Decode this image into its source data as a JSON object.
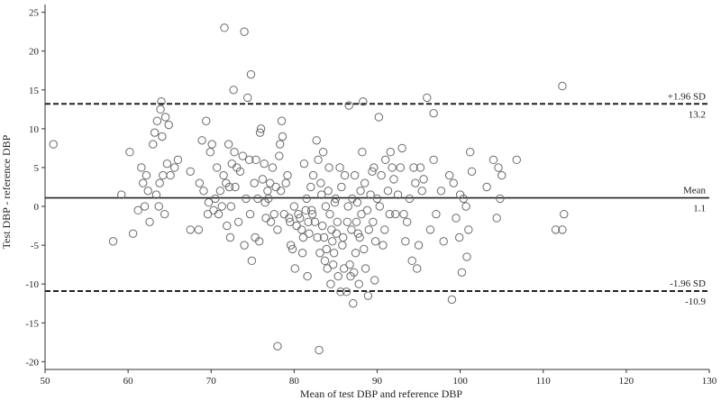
{
  "chart_data": {
    "type": "scatter",
    "title": "",
    "xlabel": "Mean of test DBP and reference DBP",
    "ylabel": "Test DBP - reference DBP",
    "xlim": [
      50,
      130
    ],
    "ylim": [
      -21,
      26
    ],
    "xticks": [
      50,
      60,
      70,
      80,
      90,
      100,
      110,
      120,
      130
    ],
    "yticks": [
      -20,
      -15,
      -10,
      -5,
      0,
      5,
      10,
      15,
      20,
      25
    ],
    "grid": false,
    "reference_lines": [
      {
        "name": "upper-loa",
        "value": 13.2,
        "style": "dashed",
        "label_top": "+1.96 SD",
        "label_bottom": "13.2"
      },
      {
        "name": "mean",
        "value": 1.1,
        "style": "solid",
        "label_top": "Mean",
        "label_bottom": "1.1"
      },
      {
        "name": "lower-loa",
        "value": -10.9,
        "style": "dashed",
        "label_top": "-1.96 SD",
        "label_bottom": "-10.9"
      }
    ],
    "points": [
      [
        51,
        8
      ],
      [
        58.2,
        -4.5
      ],
      [
        59.2,
        1.5
      ],
      [
        60.2,
        7
      ],
      [
        60.6,
        -3.5
      ],
      [
        61.2,
        -0.5
      ],
      [
        61.6,
        5
      ],
      [
        61.8,
        3
      ],
      [
        62,
        0
      ],
      [
        62.2,
        4
      ],
      [
        62.4,
        2
      ],
      [
        62.6,
        -2
      ],
      [
        63,
        8
      ],
      [
        63.2,
        9.5
      ],
      [
        63.4,
        1.5
      ],
      [
        63.5,
        11
      ],
      [
        63.7,
        0
      ],
      [
        63.8,
        3
      ],
      [
        63.9,
        12.5
      ],
      [
        64,
        13.5
      ],
      [
        64.1,
        9
      ],
      [
        64.2,
        4
      ],
      [
        64.4,
        -1
      ],
      [
        64.5,
        11.5
      ],
      [
        64.7,
        5.5
      ],
      [
        64.9,
        10.5
      ],
      [
        65.1,
        4
      ],
      [
        65.6,
        5
      ],
      [
        66,
        6
      ],
      [
        67.5,
        4.5
      ],
      [
        67.5,
        -3
      ],
      [
        68.5,
        -3
      ],
      [
        68.6,
        3
      ],
      [
        68.9,
        8.5
      ],
      [
        69.1,
        2
      ],
      [
        69.4,
        11
      ],
      [
        69.6,
        -1
      ],
      [
        69.7,
        0.5
      ],
      [
        69.9,
        7
      ],
      [
        70.1,
        8
      ],
      [
        70.3,
        -0.5
      ],
      [
        70.5,
        1
      ],
      [
        70.7,
        5
      ],
      [
        70.9,
        -1
      ],
      [
        71.1,
        2
      ],
      [
        71.3,
        0
      ],
      [
        71.5,
        4
      ],
      [
        71.6,
        23
      ],
      [
        71.8,
        3
      ],
      [
        71.9,
        -2.5
      ],
      [
        72.1,
        8
      ],
      [
        72.2,
        2.5
      ],
      [
        72.3,
        -4
      ],
      [
        72.4,
        0
      ],
      [
        72.5,
        5.5
      ],
      [
        72.7,
        15
      ],
      [
        72.8,
        7
      ],
      [
        72.9,
        2.5
      ],
      [
        73.1,
        5
      ],
      [
        73.3,
        -2
      ],
      [
        73.5,
        4.5
      ],
      [
        73.8,
        6.5
      ],
      [
        74,
        22.5
      ],
      [
        74,
        -5
      ],
      [
        74.2,
        1
      ],
      [
        74.4,
        14
      ],
      [
        74.6,
        6
      ],
      [
        74.7,
        -1
      ],
      [
        74.8,
        17
      ],
      [
        74.9,
        -7
      ],
      [
        75.2,
        3
      ],
      [
        75.3,
        -4
      ],
      [
        75.4,
        6
      ],
      [
        75.6,
        1
      ],
      [
        75.8,
        -4.5
      ],
      [
        75.9,
        9.5
      ],
      [
        76,
        10
      ],
      [
        76.2,
        3.5
      ],
      [
        76.4,
        5.5
      ],
      [
        76.5,
        0.5
      ],
      [
        76.6,
        -1.5
      ],
      [
        76.8,
        2
      ],
      [
        76.9,
        1
      ],
      [
        77.1,
        3
      ],
      [
        77.2,
        -2
      ],
      [
        77.4,
        5
      ],
      [
        77.6,
        -1
      ],
      [
        77.8,
        2.5
      ],
      [
        78,
        -3
      ],
      [
        78,
        -18
      ],
      [
        78.2,
        6.5
      ],
      [
        78.3,
        8
      ],
      [
        78.4,
        2
      ],
      [
        78.5,
        11
      ],
      [
        78.6,
        9
      ],
      [
        78.8,
        -1
      ],
      [
        79,
        3
      ],
      [
        79.2,
        4
      ],
      [
        79.4,
        -1.5
      ],
      [
        79.5,
        -2
      ],
      [
        79.6,
        -5
      ],
      [
        79.8,
        -5.5
      ],
      [
        80,
        0
      ],
      [
        80.1,
        -8
      ],
      [
        80.3,
        -2.5
      ],
      [
        80.5,
        -1
      ],
      [
        80.7,
        -1.5
      ],
      [
        80.9,
        -3
      ],
      [
        81,
        -6
      ],
      [
        81.1,
        -4
      ],
      [
        81.2,
        5.5
      ],
      [
        81.4,
        -0.5
      ],
      [
        81.5,
        1
      ],
      [
        81.6,
        -9
      ],
      [
        81.7,
        -2
      ],
      [
        81.8,
        -3.5
      ],
      [
        82,
        2.5
      ],
      [
        82.1,
        -0.5
      ],
      [
        82.2,
        -1
      ],
      [
        82.3,
        4
      ],
      [
        82.5,
        -2
      ],
      [
        82.7,
        8.5
      ],
      [
        82.8,
        -4
      ],
      [
        82.9,
        6
      ],
      [
        83,
        -18.5
      ],
      [
        83.1,
        -6
      ],
      [
        83.2,
        3
      ],
      [
        83.3,
        1.5
      ],
      [
        83.4,
        -2.5
      ],
      [
        83.5,
        7
      ],
      [
        83.6,
        -4
      ],
      [
        83.7,
        -7
      ],
      [
        83.8,
        0
      ],
      [
        83.9,
        -5.5
      ],
      [
        84,
        -8
      ],
      [
        84.1,
        2
      ],
      [
        84.2,
        5
      ],
      [
        84.3,
        -1
      ],
      [
        84.4,
        -10
      ],
      [
        84.5,
        -3
      ],
      [
        84.6,
        -4.5
      ],
      [
        84.7,
        -7.5
      ],
      [
        84.8,
        -6
      ],
      [
        84.9,
        0.5
      ],
      [
        85,
        1
      ],
      [
        85.1,
        -3.5
      ],
      [
        85.2,
        -2
      ],
      [
        85.3,
        -9
      ],
      [
        85.5,
        5
      ],
      [
        85.6,
        -11
      ],
      [
        85.7,
        2.5
      ],
      [
        85.8,
        -5
      ],
      [
        85.9,
        -4
      ],
      [
        86,
        -8
      ],
      [
        86.1,
        4
      ],
      [
        86.3,
        -11
      ],
      [
        86.4,
        -2
      ],
      [
        86.5,
        0
      ],
      [
        86.6,
        13
      ],
      [
        86.7,
        -7.5
      ],
      [
        86.8,
        -9
      ],
      [
        86.9,
        -3
      ],
      [
        87,
        1
      ],
      [
        87.1,
        -12.5
      ],
      [
        87.2,
        -8.5
      ],
      [
        87.3,
        4
      ],
      [
        87.4,
        -6
      ],
      [
        87.5,
        -2
      ],
      [
        87.6,
        0.5
      ],
      [
        87.7,
        -3.5
      ],
      [
        87.8,
        -10
      ],
      [
        87.9,
        -4
      ],
      [
        88,
        2
      ],
      [
        88.1,
        -1
      ],
      [
        88.2,
        7
      ],
      [
        88.3,
        13.5
      ],
      [
        88.4,
        -5.5
      ],
      [
        88.5,
        3
      ],
      [
        88.6,
        -8
      ],
      [
        88.8,
        -0.5
      ],
      [
        88.9,
        -11.5
      ],
      [
        89,
        -3
      ],
      [
        89.2,
        1.5
      ],
      [
        89.4,
        4.5
      ],
      [
        89.5,
        -2
      ],
      [
        89.6,
        5
      ],
      [
        89.7,
        -9.5
      ],
      [
        89.8,
        -4.5
      ],
      [
        90,
        1
      ],
      [
        90.2,
        11.5
      ],
      [
        90.3,
        0
      ],
      [
        90.5,
        4
      ],
      [
        90.7,
        -5
      ],
      [
        90.9,
        -3
      ],
      [
        91,
        6
      ],
      [
        91.3,
        2
      ],
      [
        91.5,
        -1
      ],
      [
        91.6,
        7
      ],
      [
        91.8,
        5
      ],
      [
        92,
        3.5
      ],
      [
        92.2,
        -1
      ],
      [
        92.5,
        1.5
      ],
      [
        92.8,
        5
      ],
      [
        93,
        7.5
      ],
      [
        93.2,
        -1
      ],
      [
        93.4,
        -4.5
      ],
      [
        93.6,
        -2
      ],
      [
        93.9,
        1
      ],
      [
        94.2,
        -7
      ],
      [
        94.4,
        5
      ],
      [
        94.6,
        3
      ],
      [
        94.8,
        -8
      ],
      [
        95,
        -5
      ],
      [
        95.2,
        5
      ],
      [
        95.4,
        2
      ],
      [
        95.6,
        3.5
      ],
      [
        96,
        14
      ],
      [
        96.4,
        -3
      ],
      [
        96.8,
        12
      ],
      [
        96.8,
        6
      ],
      [
        97.1,
        -1
      ],
      [
        97.7,
        2
      ],
      [
        98,
        -4.5
      ],
      [
        98.7,
        4
      ],
      [
        99,
        -12
      ],
      [
        99.2,
        3
      ],
      [
        99.5,
        -1.5
      ],
      [
        99.9,
        -4
      ],
      [
        100,
        1.5
      ],
      [
        100.2,
        -8.5
      ],
      [
        100.4,
        1
      ],
      [
        100.7,
        0
      ],
      [
        100.8,
        -6.5
      ],
      [
        101,
        -3
      ],
      [
        101.2,
        7
      ],
      [
        101.4,
        4.5
      ],
      [
        103.2,
        2.5
      ],
      [
        104,
        6
      ],
      [
        104.4,
        -1.5
      ],
      [
        104.6,
        5
      ],
      [
        104.8,
        1
      ],
      [
        105,
        4
      ],
      [
        106.8,
        6
      ],
      [
        111.5,
        -3
      ],
      [
        112.3,
        -3
      ],
      [
        112.3,
        15.5
      ],
      [
        112.5,
        -1
      ]
    ]
  }
}
